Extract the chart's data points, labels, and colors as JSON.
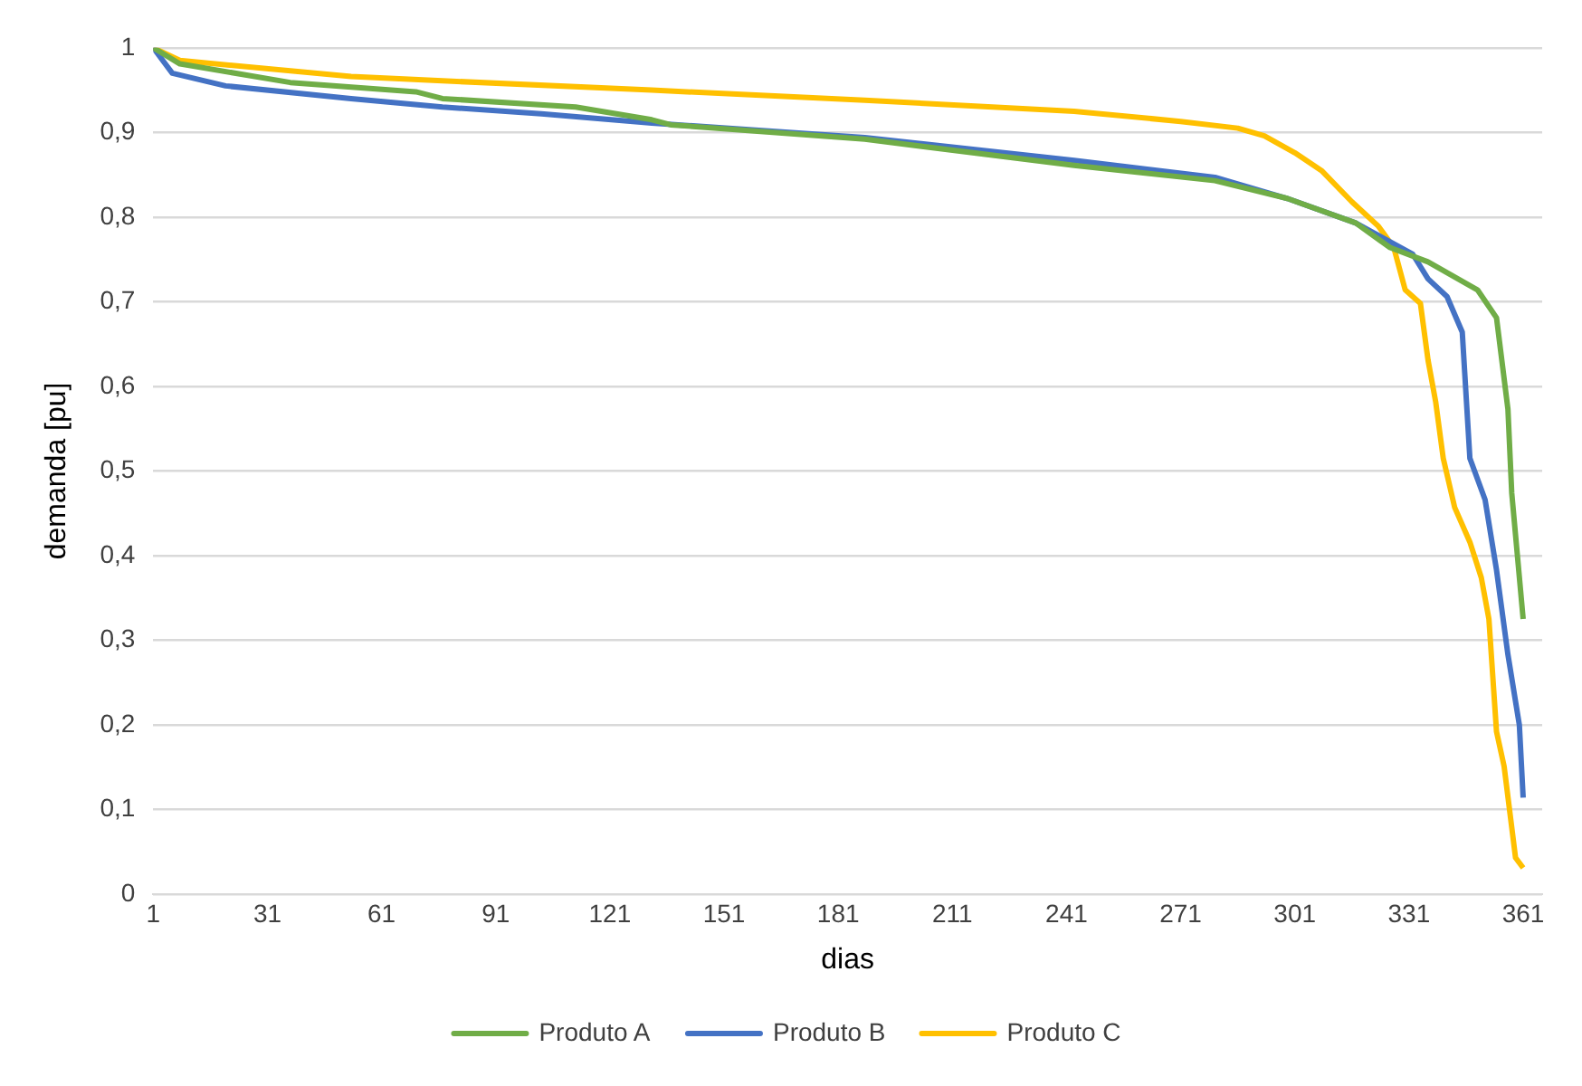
{
  "chart_data": {
    "type": "line",
    "xlabel": "dias",
    "ylabel": "demanda [pu]",
    "xlim": [
      1,
      366
    ],
    "xticks": [
      1,
      31,
      61,
      91,
      121,
      151,
      181,
      211,
      241,
      271,
      301,
      331,
      361
    ],
    "ylim": [
      0,
      1
    ],
    "yticks": [
      {
        "value": 0,
        "label": "0"
      },
      {
        "value": 0.1,
        "label": "0,1"
      },
      {
        "value": 0.2,
        "label": "0,2"
      },
      {
        "value": 0.3,
        "label": "0,3"
      },
      {
        "value": 0.4,
        "label": "0,4"
      },
      {
        "value": 0.5,
        "label": "0,5"
      },
      {
        "value": 0.6,
        "label": "0,6"
      },
      {
        "value": 0.7,
        "label": "0,7"
      },
      {
        "value": 0.8,
        "label": "0,8"
      },
      {
        "value": 0.9,
        "label": "0,9"
      },
      {
        "value": 1,
        "label": "1"
      }
    ],
    "grid": "y",
    "legend": "bottom",
    "marker": "none",
    "line_style": "solid",
    "series": [
      {
        "name": "Produto A",
        "color": "#70ad47",
        "x": [
          1,
          8,
          37,
          70,
          77,
          112,
          132,
          137,
          188,
          243,
          280,
          299,
          317,
          326,
          336,
          349,
          354,
          357,
          358,
          361
        ],
        "values": [
          1,
          0.981,
          0.959,
          0.948,
          0.94,
          0.93,
          0.915,
          0.909,
          0.892,
          0.861,
          0.843,
          0.822,
          0.793,
          0.764,
          0.747,
          0.714,
          0.681,
          0.573,
          0.474,
          0.325
        ]
      },
      {
        "name": "Produto B",
        "color": "#4472c4",
        "x": [
          1,
          6,
          20,
          53,
          77,
          103,
          132,
          188,
          243,
          280,
          299,
          317,
          332,
          336,
          341,
          345,
          347,
          351,
          354,
          357,
          360,
          361
        ],
        "values": [
          1,
          0.97,
          0.955,
          0.94,
          0.93,
          0.922,
          0.911,
          0.894,
          0.867,
          0.847,
          0.822,
          0.793,
          0.756,
          0.727,
          0.706,
          0.664,
          0.515,
          0.466,
          0.383,
          0.283,
          0.2,
          0.114
        ]
      },
      {
        "name": "Produto C",
        "color": "#ffc000",
        "x": [
          1,
          8,
          53,
          77,
          132,
          188,
          243,
          271,
          286,
          293,
          301,
          308,
          316,
          323,
          327,
          330,
          334,
          336,
          338,
          340,
          343,
          347,
          350,
          352,
          354,
          356,
          359,
          361
        ],
        "values": [
          1,
          0.985,
          0.966,
          0.961,
          0.95,
          0.938,
          0.925,
          0.913,
          0.905,
          0.896,
          0.876,
          0.855,
          0.818,
          0.789,
          0.764,
          0.714,
          0.698,
          0.631,
          0.582,
          0.515,
          0.457,
          0.416,
          0.374,
          0.325,
          0.192,
          0.151,
          0.043,
          0.031
        ]
      }
    ]
  }
}
